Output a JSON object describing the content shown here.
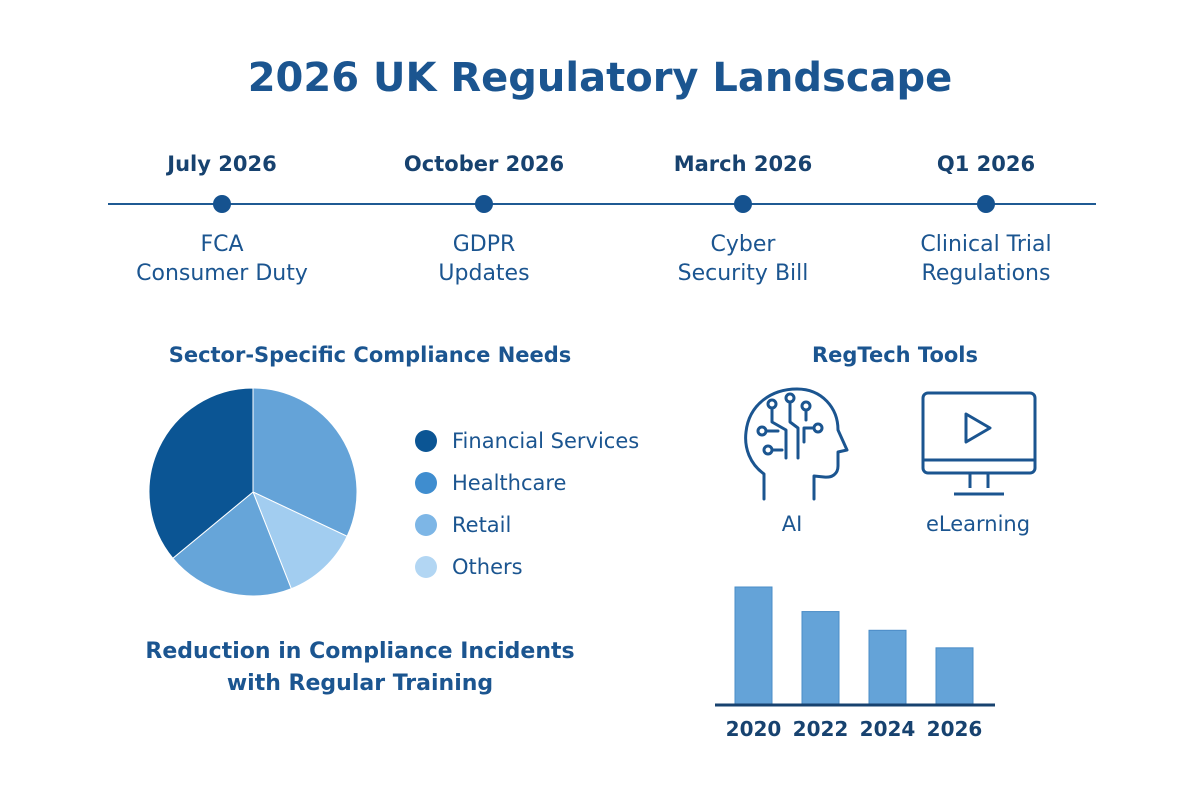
{
  "title": "2026 UK Regulatory Landscape",
  "timeline": [
    {
      "date": "July 2026",
      "event_line1": "FCA",
      "event_line2": "Consumer Duty"
    },
    {
      "date": "October 2026",
      "event_line1": "GDPR",
      "event_line2": "Updates"
    },
    {
      "date": "March 2026",
      "event_line1": "Cyber",
      "event_line2": "Security Bill"
    },
    {
      "date": "Q1 2026",
      "event_line1": "Clinical Trial",
      "event_line2": "Regulations"
    }
  ],
  "sector": {
    "title": "Sector-Specific Compliance Needs",
    "legend": [
      {
        "label": "Financial Services",
        "color": "#0b5594"
      },
      {
        "label": "Healthcare",
        "color": "#3f8dcf"
      },
      {
        "label": "Retail",
        "color": "#7db6e6"
      },
      {
        "label": "Others",
        "color": "#b2d6f3"
      }
    ]
  },
  "regtech": {
    "title": "RegTech Tools",
    "tools": [
      {
        "label": "AI",
        "icon": "ai-head-circuit-icon"
      },
      {
        "label": "eLearning",
        "icon": "monitor-play-icon"
      }
    ]
  },
  "reduction": {
    "line1": "Reduction in Compliance Incidents",
    "line2": "with Regular Training"
  },
  "chart_data": [
    {
      "type": "pie",
      "title": "Sector-Specific Compliance Needs",
      "slices": [
        {
          "label": "Healthcare",
          "value": 32,
          "color": "#64a3d8"
        },
        {
          "label": "Others",
          "value": 12,
          "color": "#a2cdf0"
        },
        {
          "label": "Retail",
          "value": 20,
          "color": "#66a5d9"
        },
        {
          "label": "Financial Services",
          "value": 36,
          "color": "#0b5594"
        }
      ],
      "legend_placement": "right"
    },
    {
      "type": "bar",
      "categories": [
        "2020",
        "2022",
        "2024",
        "2026"
      ],
      "values": [
        100,
        79,
        63,
        48
      ],
      "bar_color": "#64a3d8",
      "axis_color": "#17426f",
      "ylim": [
        0,
        100
      ],
      "grid": false
    }
  ]
}
